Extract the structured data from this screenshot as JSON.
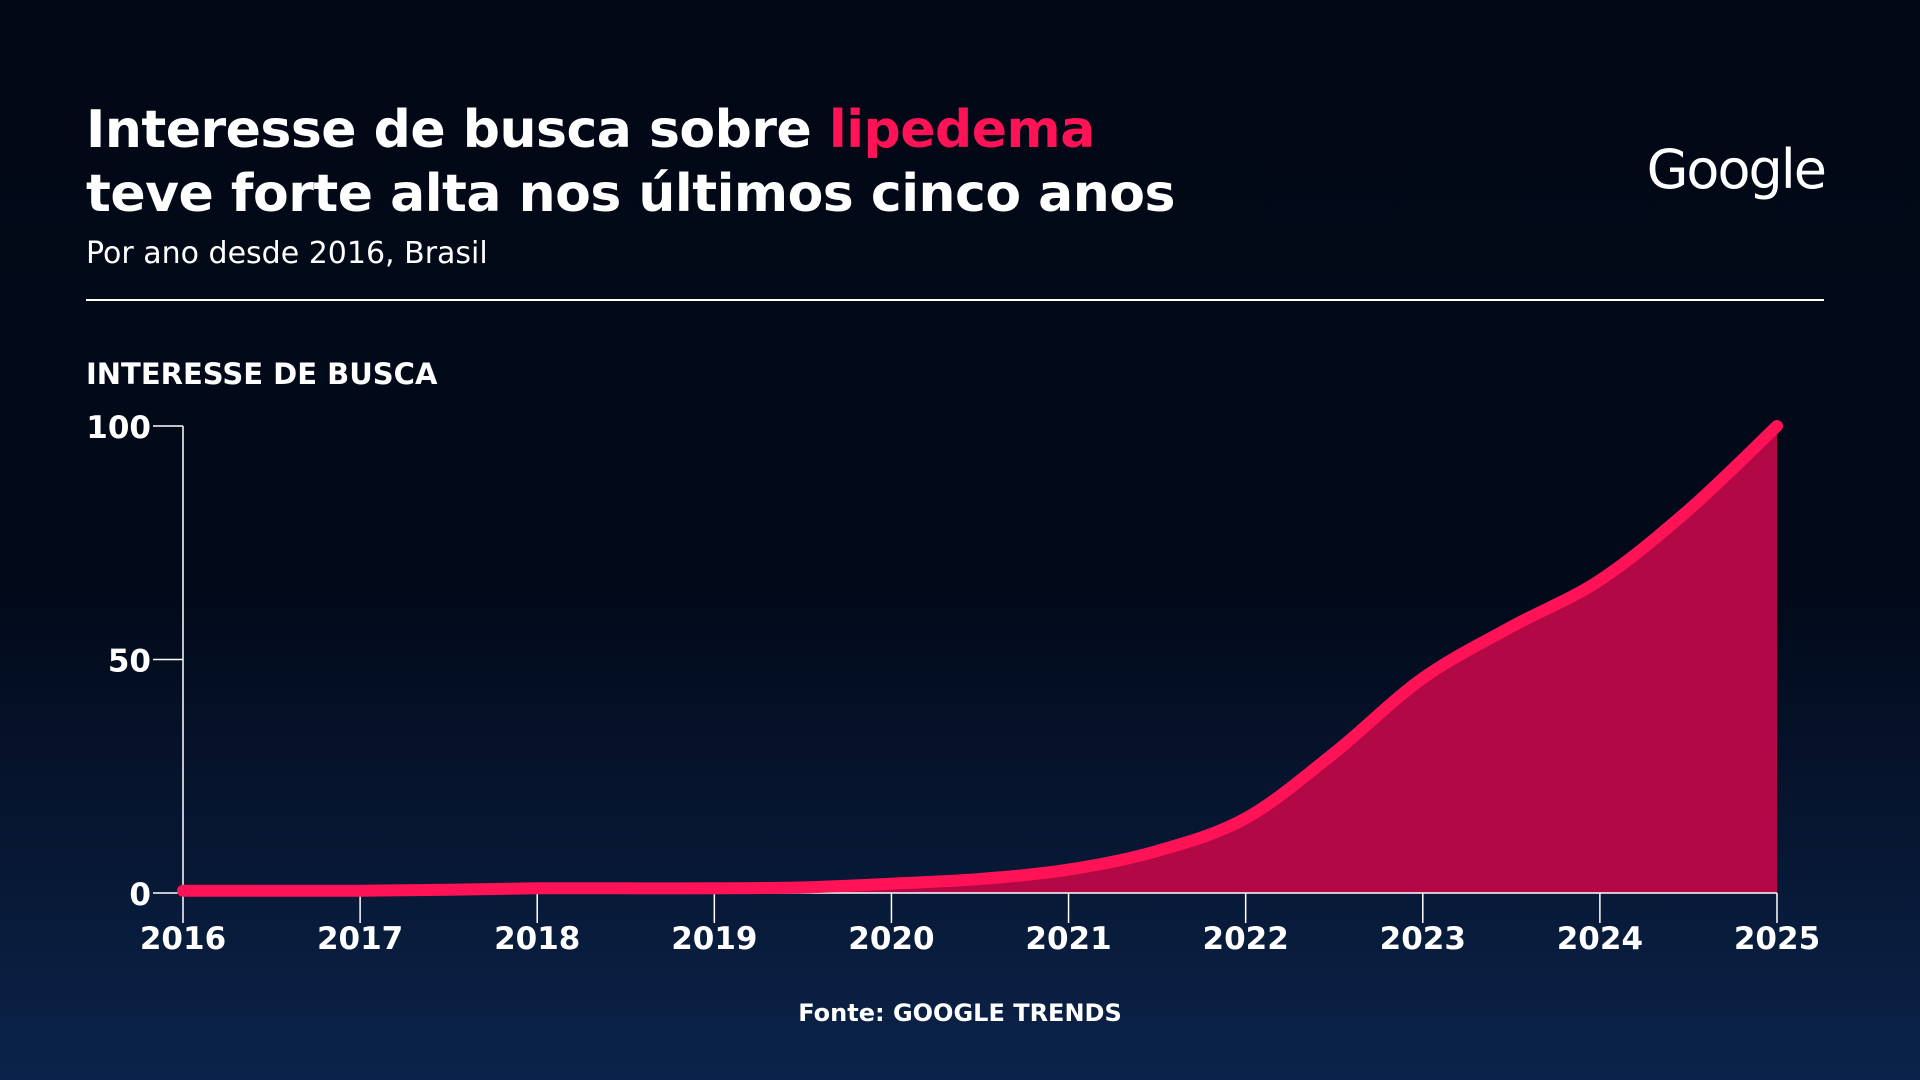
{
  "header": {
    "title_line1_prefix": "Interesse de busca sobre ",
    "title_highlight": "lipedema",
    "title_line2": "teve forte alta nos últimos cinco anos",
    "subtitle": "Por ano desde 2016, Brasil",
    "logo_text": "Google"
  },
  "footer": {
    "source": "Fonte: GOOGLE TRENDS"
  },
  "colors": {
    "accent": "#ff1256",
    "area_fill": "#b30846",
    "text": "#ffffff"
  },
  "chart_data": {
    "type": "area",
    "title": "Interesse de busca sobre lipedema teve forte alta nos últimos cinco anos",
    "subtitle": "Por ano desde 2016, Brasil",
    "ylabel": "INTERESSE DE BUSCA",
    "xlabel": "",
    "x": [
      2016,
      2017,
      2018,
      2019,
      2020,
      2021,
      2022,
      2023,
      2024,
      2025
    ],
    "x_ticks": [
      "2016",
      "2017",
      "2018",
      "2019",
      "2020",
      "2021",
      "2022",
      "2023",
      "2024",
      "2025"
    ],
    "y_ticks": [
      "0",
      "50",
      "100"
    ],
    "ylim": [
      0,
      100
    ],
    "grid": false,
    "series": [
      {
        "name": "",
        "x": [
          2016,
          2016.5,
          2017,
          2017.5,
          2018,
          2018.5,
          2019,
          2019.5,
          2020,
          2020.5,
          2021,
          2021.5,
          2022,
          2022.5,
          2023,
          2023.5,
          2024,
          2024.5,
          2025
        ],
        "values": [
          0.5,
          0.5,
          0.5,
          0.7,
          1,
          1,
          1,
          1.2,
          2,
          3,
          5,
          9,
          16,
          30,
          46,
          57,
          67,
          82,
          100
        ]
      }
    ]
  }
}
